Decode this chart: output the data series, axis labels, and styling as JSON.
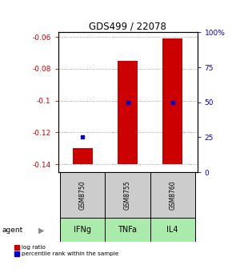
{
  "title": "GDS499 / 22078",
  "categories": [
    "IFNg",
    "TNFa",
    "IL4"
  ],
  "gsm_labels": [
    "GSM8750",
    "GSM8755",
    "GSM8760"
  ],
  "bar_values": [
    -0.13,
    -0.075,
    -0.061
  ],
  "bar_baseline": -0.14,
  "blue_dot_pct_values": [
    25,
    50,
    50
  ],
  "ylim_left": [
    -0.145,
    -0.057
  ],
  "ylim_right": [
    0,
    100
  ],
  "left_yticks": [
    -0.14,
    -0.12,
    -0.1,
    -0.08,
    -0.06
  ],
  "right_yticks": [
    0,
    25,
    50,
    75,
    100
  ],
  "bar_color": "#cc0000",
  "dot_color": "#0000cc",
  "gsm_bg_color": "#cccccc",
  "agent_bg_color": "#aaeaaa",
  "left_axis_color": "#cc0000",
  "right_axis_color": "#0000cc",
  "grid_color": "#888888",
  "legend_log_label": "log ratio",
  "legend_pct_label": "percentile rank within the sample",
  "agent_label": "agent"
}
